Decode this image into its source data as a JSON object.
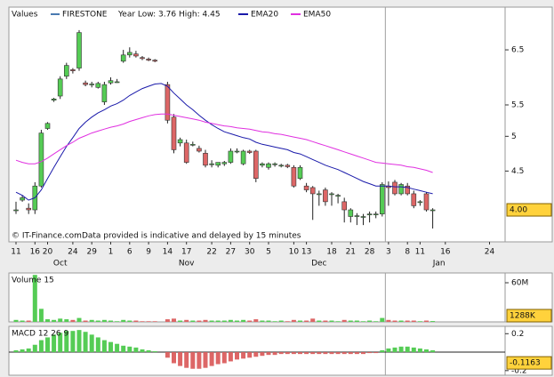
{
  "chart_data": [
    {
      "type": "candlestick",
      "legend_title": "Values",
      "name": "FIRESTONE",
      "color": "#4a7ab0",
      "subtitle": "Year Low: 3.76 High: 4.45",
      "footnote": "© IT-Finance.comData provided is indicative and delayed by 15 minutes",
      "up_color": "#55cc55",
      "down_color": "#dd6666",
      "log_scale": true,
      "ylim": [
        3.63,
        7.4
      ],
      "yticks": [
        6.5,
        5.5,
        5,
        4.5
      ],
      "last_value": {
        "value": 4.0,
        "label": "4.00"
      },
      "months": [
        "Oct",
        "Nov",
        "Dec",
        "Jan"
      ],
      "categories": [
        "11",
        null,
        null,
        "16",
        null,
        "20",
        null,
        null,
        null,
        "24",
        null,
        null,
        "29",
        null,
        null,
        "1",
        null,
        null,
        "6",
        null,
        null,
        "9",
        null,
        null,
        "14",
        null,
        null,
        "17",
        null,
        null,
        null,
        "22",
        null,
        null,
        "27",
        null,
        null,
        "30",
        null,
        null,
        "5",
        null,
        null,
        null,
        "10",
        null,
        "13",
        null,
        null,
        null,
        "18",
        null,
        null,
        "21",
        null,
        null,
        "28",
        null,
        null,
        "3",
        null,
        null,
        "8",
        null,
        "11",
        null,
        null,
        null,
        "16",
        null,
        null,
        null,
        null,
        null,
        null,
        "24",
        null
      ],
      "open": [
        4.0,
        4.12,
        4.02,
        4.0,
        4.3,
        5.12,
        5.58,
        5.65,
        6.0,
        6.12,
        6.15,
        5.88,
        5.85,
        5.8,
        5.55,
        5.88,
        5.9,
        6.28,
        6.4,
        6.42,
        6.35,
        6.32,
        6.3,
        null,
        5.85,
        5.3,
        4.9,
        4.9,
        4.88,
        4.82,
        4.75,
        4.6,
        4.58,
        4.6,
        4.62,
        4.78,
        4.6,
        4.78,
        4.78,
        4.58,
        4.55,
        4.6,
        4.58,
        4.58,
        4.55,
        4.4,
        4.3,
        4.28,
        4.2,
        4.25,
        4.2,
        4.18,
        4.1,
        3.92,
        3.93,
        3.92,
        3.95,
        3.95,
        3.95,
        4.3,
        4.35,
        4.2,
        4.3,
        4.2,
        4.1,
        4.2,
        4.0,
        null,
        null,
        null,
        null,
        null,
        null,
        null,
        null,
        null,
        null
      ],
      "high": [
        4.1,
        4.18,
        4.08,
        4.35,
        5.1,
        5.22,
        5.62,
        6.0,
        6.25,
        6.15,
        6.9,
        5.92,
        5.9,
        5.9,
        5.9,
        5.98,
        5.95,
        6.5,
        6.55,
        6.48,
        6.38,
        6.35,
        6.32,
        null,
        5.9,
        5.35,
        4.98,
        4.95,
        4.92,
        4.86,
        4.8,
        4.65,
        4.62,
        4.64,
        4.82,
        4.82,
        4.8,
        4.8,
        4.8,
        4.62,
        4.62,
        4.62,
        4.6,
        4.6,
        4.58,
        4.58,
        4.34,
        4.3,
        4.24,
        4.28,
        4.22,
        4.2,
        4.15,
        4.02,
        3.96,
        3.95,
        3.98,
        3.98,
        4.35,
        4.36,
        4.38,
        4.34,
        4.34,
        4.24,
        4.12,
        4.22,
        4.02,
        null,
        null,
        null,
        null,
        null,
        null,
        null,
        null,
        null,
        null
      ],
      "low": [
        3.95,
        4.1,
        3.95,
        3.95,
        4.28,
        5.1,
        5.55,
        5.6,
        5.95,
        6.05,
        6.1,
        5.82,
        5.8,
        5.78,
        5.5,
        5.85,
        5.88,
        6.25,
        6.35,
        6.35,
        6.3,
        6.28,
        6.26,
        null,
        5.2,
        4.75,
        4.85,
        4.6,
        4.85,
        4.76,
        4.55,
        4.55,
        4.55,
        4.57,
        4.6,
        4.75,
        4.58,
        4.74,
        4.35,
        4.55,
        4.52,
        4.56,
        4.55,
        4.54,
        4.28,
        4.38,
        4.22,
        3.88,
        4.05,
        4.05,
        4.05,
        4.08,
        3.85,
        3.85,
        3.82,
        3.82,
        3.85,
        3.9,
        3.92,
        4.05,
        4.18,
        4.18,
        4.18,
        4.02,
        4.05,
        3.98,
        3.78,
        null,
        null,
        null,
        null,
        null,
        null,
        null,
        null,
        null,
        null
      ],
      "close": [
        4.0,
        4.15,
        4.0,
        4.3,
        5.05,
        5.2,
        5.6,
        5.95,
        6.2,
        6.1,
        6.85,
        5.85,
        5.86,
        5.87,
        5.85,
        5.92,
        5.9,
        6.4,
        6.45,
        6.38,
        6.33,
        6.3,
        6.28,
        null,
        5.25,
        4.8,
        4.95,
        4.62,
        4.88,
        4.78,
        4.58,
        4.6,
        4.62,
        4.62,
        4.78,
        4.78,
        4.78,
        4.76,
        4.4,
        4.6,
        4.6,
        4.6,
        4.58,
        4.56,
        4.3,
        4.55,
        4.25,
        4.2,
        4.2,
        4.1,
        4.2,
        4.18,
        4.0,
        4.0,
        3.93,
        3.92,
        3.95,
        3.95,
        4.32,
        4.28,
        4.2,
        4.32,
        4.2,
        4.05,
        4.1,
        4.0,
        4.0,
        null,
        null,
        null,
        null,
        null,
        null,
        null,
        null,
        null,
        null
      ],
      "lines": [
        {
          "name": "EMA20",
          "color": "#1a1aaa",
          "values": [
            4.22,
            4.18,
            4.12,
            4.15,
            4.25,
            4.4,
            4.55,
            4.7,
            4.85,
            4.98,
            5.12,
            5.22,
            5.3,
            5.37,
            5.42,
            5.48,
            5.52,
            5.58,
            5.66,
            5.72,
            5.78,
            5.82,
            5.86,
            5.87,
            5.82,
            5.7,
            5.6,
            5.5,
            5.42,
            5.33,
            5.25,
            5.18,
            5.12,
            5.07,
            5.04,
            5.01,
            4.98,
            4.96,
            4.91,
            4.88,
            4.86,
            4.84,
            4.82,
            4.8,
            4.76,
            4.74,
            4.7,
            4.66,
            4.62,
            4.58,
            4.55,
            4.52,
            4.48,
            4.44,
            4.4,
            4.36,
            4.33,
            4.3,
            4.3,
            4.3,
            4.29,
            4.29,
            4.28,
            4.26,
            4.24,
            4.22,
            4.2,
            null,
            null,
            null,
            null,
            null,
            null,
            null,
            null,
            null,
            null
          ]
        },
        {
          "name": "EMA50",
          "color": "#e030e0",
          "values": [
            4.65,
            4.62,
            4.6,
            4.6,
            4.63,
            4.68,
            4.74,
            4.8,
            4.86,
            4.91,
            4.97,
            5.01,
            5.05,
            5.08,
            5.11,
            5.14,
            5.16,
            5.19,
            5.23,
            5.26,
            5.29,
            5.32,
            5.34,
            5.35,
            5.35,
            5.33,
            5.31,
            5.29,
            5.27,
            5.25,
            5.22,
            5.2,
            5.18,
            5.16,
            5.15,
            5.13,
            5.12,
            5.11,
            5.09,
            5.07,
            5.06,
            5.04,
            5.03,
            5.01,
            4.99,
            4.97,
            4.95,
            4.92,
            4.89,
            4.86,
            4.83,
            4.8,
            4.77,
            4.74,
            4.71,
            4.68,
            4.65,
            4.62,
            4.61,
            4.6,
            4.59,
            4.58,
            4.56,
            4.55,
            4.53,
            4.51,
            4.48,
            null,
            null,
            null,
            null,
            null,
            null,
            null,
            null,
            null,
            null
          ]
        }
      ]
    },
    {
      "type": "bar",
      "title": "Volume 15",
      "up_color": "#55cc55",
      "down_color": "#dd6666",
      "ylim": [
        0,
        75
      ],
      "yticks": [
        {
          "value": 60,
          "label": "60M"
        }
      ],
      "last_value": {
        "value": 1.288,
        "label": "1288K"
      },
      "values": [
        3,
        2,
        2,
        72,
        20,
        4,
        3,
        5,
        4,
        3,
        6,
        2,
        3,
        2,
        3,
        2,
        1,
        3,
        2,
        2,
        1,
        1,
        1,
        null,
        4,
        5,
        2,
        3,
        2,
        2,
        3,
        2,
        2,
        2,
        3,
        2,
        3,
        2,
        4,
        2,
        2,
        1,
        2,
        1,
        3,
        2,
        2,
        5,
        2,
        2,
        2,
        1,
        3,
        2,
        2,
        1,
        2,
        1,
        6,
        3,
        2,
        2,
        2,
        2,
        1,
        2,
        1.288,
        null,
        null,
        null,
        null,
        null,
        null,
        null,
        null,
        null,
        null
      ]
    },
    {
      "type": "bar",
      "title": "MACD 12 26 9",
      "up_color": "#55cc55",
      "down_color": "#dd6666",
      "ylim": [
        -0.25,
        0.28
      ],
      "yticks": [
        0.2,
        -0.2
      ],
      "last_value": -0.1163,
      "values": [
        0.02,
        0.03,
        0.04,
        0.08,
        0.13,
        0.16,
        0.19,
        0.21,
        0.23,
        0.23,
        0.24,
        0.22,
        0.19,
        0.16,
        0.13,
        0.11,
        0.09,
        0.07,
        0.06,
        0.05,
        0.03,
        0.02,
        0.01,
        null,
        -0.06,
        -0.12,
        -0.15,
        -0.17,
        -0.18,
        -0.18,
        -0.17,
        -0.15,
        -0.13,
        -0.12,
        -0.1,
        -0.08,
        -0.07,
        -0.06,
        -0.05,
        -0.04,
        -0.03,
        -0.03,
        -0.02,
        -0.02,
        -0.02,
        -0.02,
        -0.02,
        -0.02,
        -0.02,
        -0.02,
        -0.02,
        -0.02,
        -0.02,
        -0.02,
        -0.02,
        -0.02,
        -0.01,
        -0.01,
        0.02,
        0.04,
        0.05,
        0.06,
        0.06,
        0.05,
        0.04,
        0.03,
        0.02,
        null,
        null,
        null,
        null,
        null,
        null,
        null,
        null,
        null,
        null
      ]
    }
  ]
}
